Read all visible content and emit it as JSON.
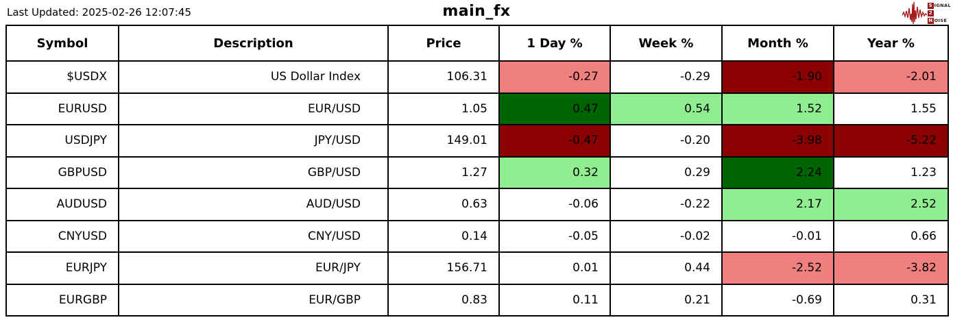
{
  "header": {
    "last_updated": "Last Updated: 2025-02-26 12:07:45",
    "title": "main_fx"
  },
  "logo": {
    "line1_initial": "S",
    "line1_rest": "IGNAL",
    "line2_initial": "2",
    "line2_rest": "",
    "line3_initial": "N",
    "line3_rest": "OISE",
    "accent_color": "#9b1515"
  },
  "colors": {
    "strong_up": "#006400",
    "up": "#90ee90",
    "down": "#f08080",
    "strong_down": "#8b0000",
    "neutral": "#ffffff"
  },
  "chart_data": {
    "type": "table",
    "title": "main_fx",
    "columns": [
      "Symbol",
      "Description",
      "Price",
      "1 Day %",
      "Week %",
      "Month %",
      "Year %"
    ],
    "rows": [
      {
        "symbol": "$USDX",
        "description": "US Dollar Index",
        "price": "106.31",
        "changes": [
          {
            "value": "-0.27",
            "bg": "down"
          },
          {
            "value": "-0.29",
            "bg": "neutral"
          },
          {
            "value": "-1.90",
            "bg": "strong_down"
          },
          {
            "value": "-2.01",
            "bg": "down"
          }
        ]
      },
      {
        "symbol": "EURUSD",
        "description": "EUR/USD",
        "price": "1.05",
        "changes": [
          {
            "value": "0.47",
            "bg": "strong_up"
          },
          {
            "value": "0.54",
            "bg": "up"
          },
          {
            "value": "1.52",
            "bg": "up"
          },
          {
            "value": "1.55",
            "bg": "neutral"
          }
        ]
      },
      {
        "symbol": "USDJPY",
        "description": "JPY/USD",
        "price": "149.01",
        "changes": [
          {
            "value": "-0.47",
            "bg": "strong_down"
          },
          {
            "value": "-0.20",
            "bg": "neutral"
          },
          {
            "value": "-3.98",
            "bg": "strong_down"
          },
          {
            "value": "-5.22",
            "bg": "strong_down"
          }
        ]
      },
      {
        "symbol": "GBPUSD",
        "description": "GBP/USD",
        "price": "1.27",
        "changes": [
          {
            "value": "0.32",
            "bg": "up"
          },
          {
            "value": "0.29",
            "bg": "neutral"
          },
          {
            "value": "2.24",
            "bg": "strong_up"
          },
          {
            "value": "1.23",
            "bg": "neutral"
          }
        ]
      },
      {
        "symbol": "AUDUSD",
        "description": "AUD/USD",
        "price": "0.63",
        "changes": [
          {
            "value": "-0.06",
            "bg": "neutral"
          },
          {
            "value": "-0.22",
            "bg": "neutral"
          },
          {
            "value": "2.17",
            "bg": "up"
          },
          {
            "value": "2.52",
            "bg": "up"
          }
        ]
      },
      {
        "symbol": "CNYUSD",
        "description": "CNY/USD",
        "price": "0.14",
        "changes": [
          {
            "value": "-0.05",
            "bg": "neutral"
          },
          {
            "value": "-0.02",
            "bg": "neutral"
          },
          {
            "value": "-0.01",
            "bg": "neutral"
          },
          {
            "value": "0.66",
            "bg": "neutral"
          }
        ]
      },
      {
        "symbol": "EURJPY",
        "description": "EUR/JPY",
        "price": "156.71",
        "changes": [
          {
            "value": "0.01",
            "bg": "neutral"
          },
          {
            "value": "0.44",
            "bg": "neutral"
          },
          {
            "value": "-2.52",
            "bg": "down"
          },
          {
            "value": "-3.82",
            "bg": "down"
          }
        ]
      },
      {
        "symbol": "EURGBP",
        "description": "EUR/GBP",
        "price": "0.83",
        "changes": [
          {
            "value": "0.11",
            "bg": "neutral"
          },
          {
            "value": "0.21",
            "bg": "neutral"
          },
          {
            "value": "-0.69",
            "bg": "neutral"
          },
          {
            "value": "0.31",
            "bg": "neutral"
          }
        ]
      }
    ]
  }
}
